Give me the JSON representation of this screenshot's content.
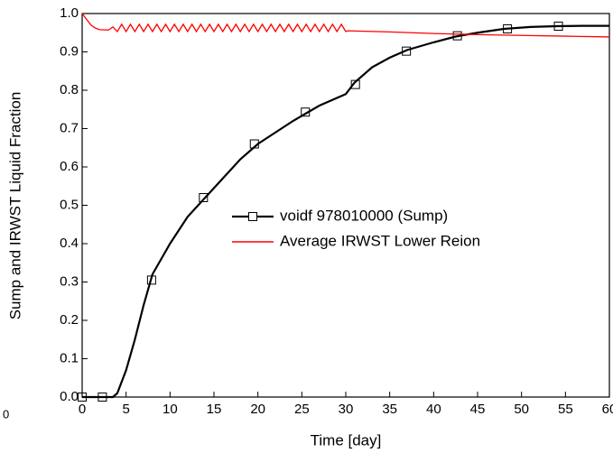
{
  "chart_data": {
    "type": "line",
    "xlabel": "Time [day]",
    "ylabel": "Sump and IRWST Liquid Fraction",
    "annotation": "0",
    "xlim": [
      0,
      60
    ],
    "ylim": [
      0,
      1
    ],
    "xticks": [
      0,
      5,
      10,
      15,
      20,
      25,
      30,
      35,
      40,
      45,
      50,
      55,
      60
    ],
    "yticks": [
      {
        "value": 0,
        "label": "0.0"
      },
      0.1,
      0.2,
      0.3,
      0.4,
      0.5,
      0.6,
      0.7,
      0.8,
      0.9,
      {
        "value": 1,
        "label": "1.0"
      }
    ],
    "series": [
      {
        "name": "voidf 978010000 (Sump)",
        "color": "#000000",
        "x": [
          0,
          2.3,
          3.5,
          4,
          5,
          6,
          7,
          8,
          9,
          10,
          12,
          14,
          16,
          18,
          20,
          22,
          24,
          25.5,
          27,
          30,
          31,
          33,
          35,
          37,
          40,
          42.5,
          45,
          48,
          51,
          54,
          57,
          60
        ],
        "values": [
          0,
          0,
          0,
          0.01,
          0.07,
          0.15,
          0.24,
          0.32,
          0.36,
          0.4,
          0.47,
          0.52,
          0.57,
          0.62,
          0.66,
          0.69,
          0.72,
          0.74,
          0.76,
          0.79,
          0.82,
          0.86,
          0.885,
          0.905,
          0.925,
          0.94,
          0.95,
          0.96,
          0.965,
          0.967,
          0.968,
          0.968
        ],
        "markers": {
          "x": [
            0,
            2.3,
            7.9,
            13.8,
            19.6,
            25.4,
            31.1,
            36.9,
            42.7,
            48.4,
            54.2
          ],
          "values": [
            0,
            0,
            0.305,
            0.52,
            0.66,
            0.743,
            0.815,
            0.902,
            0.942,
            0.96,
            0.967
          ]
        }
      },
      {
        "name": "Average IRWST Lower Reion",
        "color": "#ff0000",
        "x": [
          0,
          0.5,
          1,
          1.5,
          2,
          3,
          3.5,
          4,
          4.5,
          5,
          5.5,
          6,
          6.5,
          7,
          7.5,
          8,
          8.5,
          9,
          9.5,
          10,
          10.5,
          11,
          11.5,
          12,
          12.5,
          13,
          13.5,
          14,
          14.5,
          15,
          15.5,
          16,
          16.5,
          17,
          17.5,
          18,
          18.5,
          19,
          19.5,
          20,
          20.5,
          21,
          21.5,
          22,
          22.5,
          23,
          23.5,
          24,
          24.5,
          25,
          25.5,
          26,
          26.5,
          27,
          27.5,
          28,
          28.5,
          29,
          29.5,
          30,
          30.2,
          35,
          40,
          45,
          50,
          55,
          60
        ],
        "values": [
          1,
          0.985,
          0.97,
          0.962,
          0.958,
          0.957,
          0.965,
          0.953,
          0.972,
          0.953,
          0.972,
          0.953,
          0.972,
          0.953,
          0.972,
          0.953,
          0.972,
          0.953,
          0.972,
          0.953,
          0.972,
          0.953,
          0.972,
          0.953,
          0.972,
          0.953,
          0.972,
          0.953,
          0.972,
          0.953,
          0.972,
          0.953,
          0.972,
          0.953,
          0.972,
          0.953,
          0.972,
          0.953,
          0.972,
          0.953,
          0.972,
          0.953,
          0.972,
          0.953,
          0.972,
          0.953,
          0.972,
          0.953,
          0.972,
          0.953,
          0.972,
          0.953,
          0.972,
          0.953,
          0.972,
          0.953,
          0.972,
          0.953,
          0.972,
          0.953,
          0.955,
          0.952,
          0.948,
          0.945,
          0.943,
          0.941,
          0.939
        ]
      }
    ]
  }
}
